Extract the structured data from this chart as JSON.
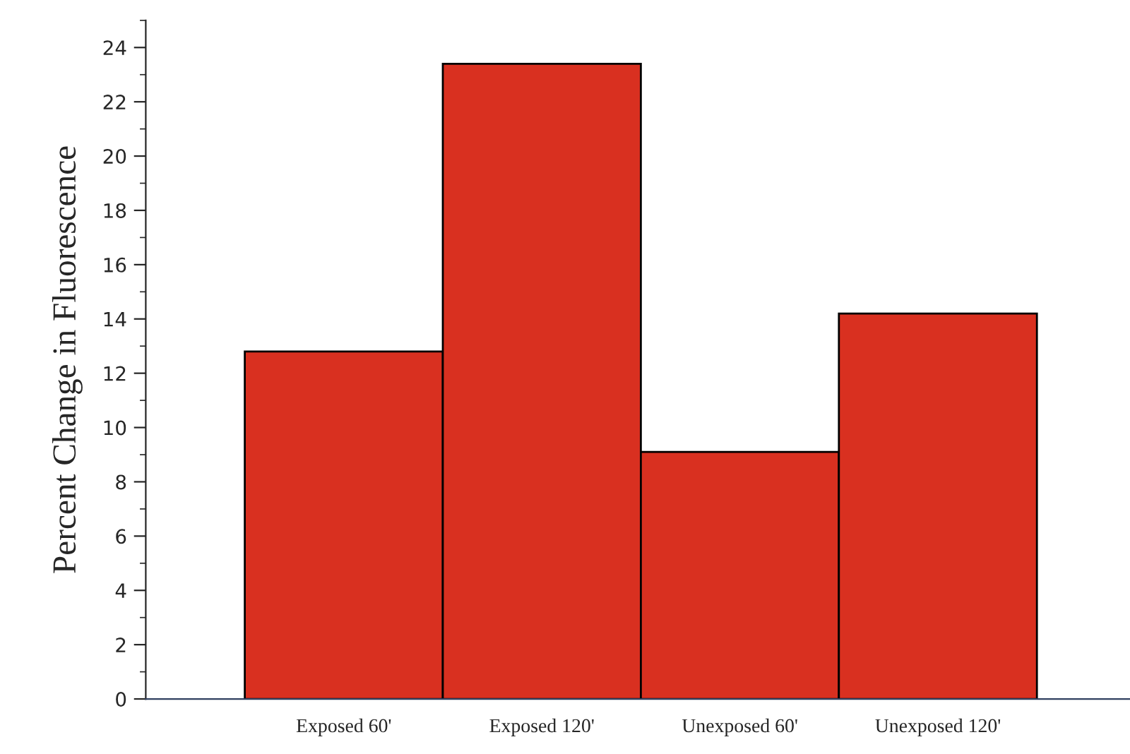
{
  "chart_data": {
    "type": "bar",
    "ylabel": "Percent Change in Fluorescence",
    "categories": [
      "Exposed 60'",
      "Exposed 120'",
      "Unexposed 60'",
      "Unexposed 120'"
    ],
    "values": [
      12.8,
      23.4,
      9.1,
      14.2
    ],
    "color": "#d93020",
    "ylim": [
      0,
      25
    ],
    "yticks": [
      0,
      2,
      4,
      6,
      8,
      10,
      12,
      14,
      16,
      18,
      20,
      22,
      24
    ],
    "grid": false
  }
}
